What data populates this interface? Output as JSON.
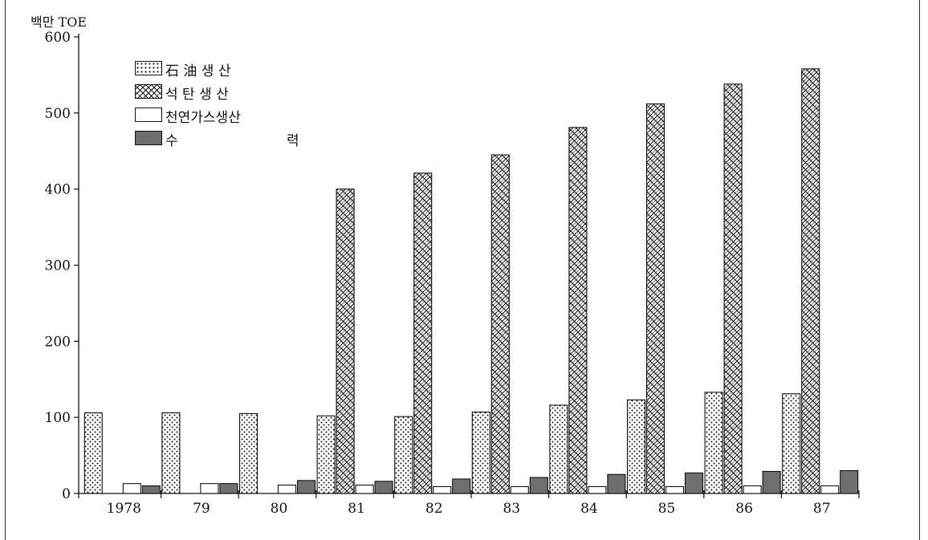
{
  "chart_data": {
    "type": "bar",
    "title": "",
    "ylabel": "백만 TOE",
    "xlabel": "",
    "ylim": [
      0,
      600
    ],
    "yticks": [
      0,
      100,
      200,
      300,
      400,
      500,
      600
    ],
    "categories": [
      "1978",
      "79",
      "80",
      "81",
      "82",
      "83",
      "84",
      "85",
      "86",
      "87"
    ],
    "series": [
      {
        "name": "石 油 생 산",
        "pattern": "dots",
        "values": [
          106,
          106,
          105,
          102,
          101,
          107,
          116,
          123,
          133,
          131
        ]
      },
      {
        "name": "석 탄 생 산",
        "pattern": "crosshatch",
        "values": [
          null,
          null,
          null,
          400,
          421,
          445,
          481,
          512,
          538,
          558
        ]
      },
      {
        "name": "천연가스생산",
        "pattern": "blank",
        "values": [
          13,
          13,
          11,
          11,
          9,
          9,
          9,
          9,
          10,
          10
        ]
      },
      {
        "name": "수 력",
        "pattern": "dark",
        "values": [
          10,
          13,
          17,
          16,
          19,
          21,
          25,
          27,
          29,
          30
        ]
      }
    ],
    "legend_position": "top-left",
    "grid": false
  },
  "colors": {
    "dark_fill": "#6f6f6f",
    "line": "#111111",
    "background": "#ffffff"
  }
}
